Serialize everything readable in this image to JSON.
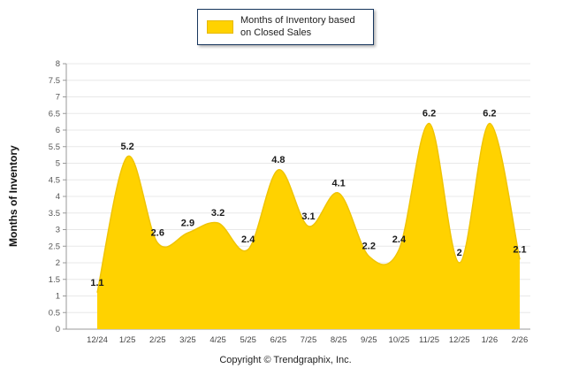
{
  "legend": {
    "label": "Months of Inventory based on Closed Sales",
    "swatch_color": "#FFD200"
  },
  "chart_data": {
    "type": "area",
    "categories": [
      "12/24",
      "1/25",
      "2/25",
      "3/25",
      "4/25",
      "5/25",
      "6/25",
      "7/25",
      "8/25",
      "9/25",
      "10/25",
      "11/25",
      "12/25",
      "1/26",
      "2/26"
    ],
    "values": [
      1.1,
      5.2,
      2.6,
      2.9,
      3.2,
      2.4,
      4.8,
      3.1,
      4.1,
      2.2,
      2.4,
      6.2,
      2,
      6.2,
      2.1
    ],
    "series_name": "Months of Inventory based on Closed Sales",
    "title": "",
    "xlabel": "",
    "ylabel": "Months of Inventory",
    "ylim": [
      0,
      8
    ],
    "ytick_step": 0.5,
    "grid": true,
    "legend_position": "top",
    "fill_color": "#FFD200",
    "line_color": "#F0C400",
    "label_color": "#1a1a1a",
    "axis_color": "#999999",
    "grid_color": "#e8e8e8",
    "tick_label_color": "#555555"
  },
  "footer": {
    "copyright": "Copyright © Trendgraphix, Inc."
  }
}
